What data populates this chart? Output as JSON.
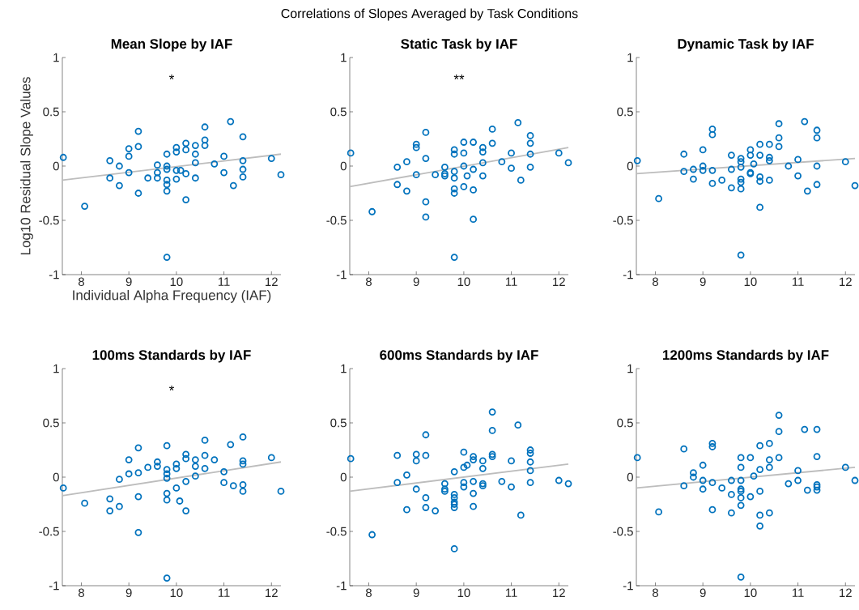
{
  "chart_data": [
    {
      "type": "other",
      "title": "Correlations of Slopes Averaged by Task Conditions"
    },
    {
      "type": "scatter",
      "title": "Mean Slope by IAF",
      "xlabel": "Individual Alpha Frequency (IAF)",
      "ylabel": "Log10 Residual Slope Values",
      "xlim": [
        7.6,
        12.2
      ],
      "ylim": [
        -1,
        1
      ],
      "xticks": [
        8,
        9,
        10,
        11,
        12
      ],
      "yticks": [
        -1,
        -0.5,
        0,
        0.5,
        1
      ],
      "annotations": [
        "*"
      ],
      "series": [
        {
          "type": "scatter",
          "marker": "circle",
          "color": "#0072bd",
          "x": [
            7.62,
            8.07,
            8.6,
            8.6,
            8.8,
            8.8,
            9.0,
            9.0,
            9.0,
            9.2,
            9.2,
            9.2,
            9.4,
            9.6,
            9.6,
            9.6,
            9.8,
            9.8,
            9.8,
            9.8,
            9.8,
            9.8,
            9.8,
            10.0,
            10.0,
            10.0,
            10.0,
            10.09,
            10.2,
            10.2,
            10.2,
            10.2,
            10.4,
            10.4,
            10.4,
            10.4,
            10.6,
            10.6,
            10.6,
            10.8,
            11.0,
            11.0,
            11.14,
            11.2,
            11.4,
            11.4,
            11.4,
            11.4,
            12.0,
            12.2
          ],
          "values": [
            0.08,
            -0.37,
            0.05,
            -0.11,
            0.0,
            -0.18,
            0.16,
            0.09,
            -0.06,
            0.32,
            0.18,
            -0.25,
            -0.11,
            0.01,
            -0.06,
            -0.11,
            0.11,
            0.0,
            -0.03,
            -0.13,
            -0.17,
            -0.23,
            -0.84,
            0.17,
            0.13,
            -0.04,
            -0.12,
            -0.04,
            0.21,
            0.15,
            -0.07,
            -0.31,
            0.19,
            0.11,
            0.03,
            -0.11,
            0.36,
            0.24,
            0.19,
            0.02,
            0.09,
            -0.06,
            0.41,
            -0.18,
            0.27,
            0.05,
            -0.03,
            -0.1,
            0.07,
            -0.08
          ]
        },
        {
          "type": "line",
          "marker": "none",
          "color": "#bdbdbd",
          "x": [
            7.6,
            12.2
          ],
          "values": [
            -0.13,
            0.11
          ]
        }
      ]
    },
    {
      "type": "scatter",
      "title": "Static Task by IAF",
      "xlim": [
        7.6,
        12.2
      ],
      "ylim": [
        -1,
        1
      ],
      "xticks": [
        8,
        9,
        10,
        11,
        12
      ],
      "yticks": [
        -1,
        -0.5,
        0,
        0.5,
        1
      ],
      "annotations": [
        "**"
      ],
      "series": [
        {
          "type": "scatter",
          "marker": "circle",
          "color": "#0072bd",
          "x": [
            7.62,
            8.07,
            8.6,
            8.6,
            8.8,
            8.8,
            9.0,
            9.0,
            9.0,
            9.2,
            9.2,
            9.2,
            9.2,
            9.4,
            9.6,
            9.6,
            9.6,
            9.8,
            9.8,
            9.8,
            9.8,
            9.8,
            9.8,
            9.8,
            10.0,
            10.0,
            10.0,
            10.0,
            10.07,
            10.2,
            10.2,
            10.2,
            10.2,
            10.4,
            10.4,
            10.4,
            10.4,
            10.6,
            10.6,
            10.8,
            11.0,
            11.0,
            11.14,
            11.2,
            11.4,
            11.4,
            11.4,
            11.4,
            12.0,
            12.2
          ],
          "values": [
            0.12,
            -0.42,
            -0.01,
            -0.17,
            0.04,
            -0.23,
            0.2,
            0.17,
            -0.08,
            0.31,
            0.07,
            -0.33,
            -0.47,
            -0.08,
            -0.01,
            -0.07,
            -0.09,
            0.15,
            0.11,
            -0.05,
            -0.11,
            -0.21,
            -0.25,
            -0.84,
            0.22,
            0.12,
            0.0,
            -0.19,
            -0.09,
            0.22,
            -0.03,
            -0.22,
            -0.49,
            0.17,
            0.13,
            0.03,
            -0.09,
            0.34,
            0.21,
            0.04,
            0.12,
            -0.02,
            0.4,
            -0.13,
            0.28,
            0.21,
            0.11,
            -0.01,
            0.12,
            0.03
          ]
        },
        {
          "type": "line",
          "marker": "none",
          "color": "#bdbdbd",
          "x": [
            7.6,
            12.2
          ],
          "values": [
            -0.19,
            0.17
          ]
        }
      ]
    },
    {
      "type": "scatter",
      "title": "Dynamic Task by IAF",
      "xlim": [
        7.6,
        12.2
      ],
      "ylim": [
        -1,
        1
      ],
      "xticks": [
        8,
        9,
        10,
        11,
        12
      ],
      "yticks": [
        -1,
        -0.5,
        0,
        0.5,
        1
      ],
      "series": [
        {
          "type": "scatter",
          "marker": "circle",
          "color": "#0072bd",
          "x": [
            7.62,
            8.07,
            8.6,
            8.6,
            8.8,
            8.8,
            9.0,
            9.0,
            9.0,
            9.2,
            9.2,
            9.2,
            9.2,
            9.4,
            9.6,
            9.6,
            9.6,
            9.8,
            9.8,
            9.8,
            9.8,
            9.8,
            9.8,
            9.8,
            10.0,
            10.0,
            10.0,
            10.0,
            10.07,
            10.2,
            10.2,
            10.2,
            10.2,
            10.2,
            10.4,
            10.4,
            10.4,
            10.4,
            10.6,
            10.6,
            10.6,
            10.8,
            11.0,
            11.0,
            11.14,
            11.2,
            11.4,
            11.4,
            11.4,
            11.4,
            12.0,
            12.2
          ],
          "values": [
            0.05,
            -0.3,
            0.11,
            -0.05,
            -0.03,
            -0.12,
            0.15,
            0.0,
            -0.04,
            0.34,
            0.29,
            -0.04,
            -0.16,
            -0.13,
            0.1,
            -0.03,
            -0.2,
            0.07,
            0.04,
            -0.01,
            -0.12,
            -0.15,
            -0.21,
            -0.82,
            0.15,
            0.1,
            -0.06,
            -0.07,
            0.02,
            0.2,
            0.1,
            -0.1,
            -0.14,
            -0.38,
            0.2,
            0.08,
            0.05,
            -0.13,
            0.39,
            0.26,
            0.18,
            0.0,
            0.06,
            -0.09,
            0.41,
            -0.23,
            0.33,
            0.26,
            0.0,
            -0.17,
            0.04,
            -0.18
          ]
        },
        {
          "type": "line",
          "marker": "none",
          "color": "#bdbdbd",
          "x": [
            7.6,
            12.2
          ],
          "values": [
            -0.07,
            0.07
          ]
        }
      ]
    },
    {
      "type": "scatter",
      "title": "100ms Standards by IAF",
      "xlim": [
        7.6,
        12.2
      ],
      "ylim": [
        -1,
        1
      ],
      "xticks": [
        8,
        9,
        10,
        11,
        12
      ],
      "yticks": [
        -1,
        -0.5,
        0,
        0.5,
        1
      ],
      "annotations": [
        "*"
      ],
      "series": [
        {
          "type": "scatter",
          "marker": "circle",
          "color": "#0072bd",
          "x": [
            7.62,
            8.07,
            8.6,
            8.6,
            8.8,
            8.8,
            9.0,
            9.0,
            9.2,
            9.2,
            9.2,
            9.2,
            9.4,
            9.6,
            9.6,
            9.8,
            9.8,
            9.8,
            9.8,
            9.8,
            9.8,
            9.8,
            10.0,
            10.0,
            10.0,
            10.07,
            10.2,
            10.2,
            10.2,
            10.2,
            10.4,
            10.4,
            10.4,
            10.6,
            10.6,
            10.6,
            10.8,
            11.0,
            11.0,
            11.14,
            11.2,
            11.4,
            11.4,
            11.4,
            11.4,
            11.4,
            12.0,
            12.2
          ],
          "values": [
            -0.1,
            -0.24,
            -0.2,
            -0.31,
            -0.02,
            -0.27,
            0.16,
            0.03,
            0.27,
            0.04,
            -0.18,
            -0.51,
            0.09,
            0.14,
            0.1,
            0.29,
            0.07,
            0.03,
            -0.01,
            -0.15,
            -0.21,
            -0.93,
            0.12,
            0.08,
            -0.1,
            -0.22,
            0.21,
            0.17,
            -0.04,
            -0.31,
            0.16,
            0.1,
            0.01,
            0.34,
            0.2,
            0.08,
            0.16,
            0.05,
            -0.05,
            0.3,
            -0.08,
            0.37,
            0.15,
            0.12,
            -0.07,
            -0.13,
            0.18,
            -0.13
          ]
        },
        {
          "type": "line",
          "marker": "none",
          "color": "#bdbdbd",
          "x": [
            7.6,
            12.2
          ],
          "values": [
            -0.17,
            0.14
          ]
        }
      ]
    },
    {
      "type": "scatter",
      "title": "600ms Standards by IAF",
      "xlim": [
        7.6,
        12.2
      ],
      "ylim": [
        -1,
        1
      ],
      "xticks": [
        8,
        9,
        10,
        11,
        12
      ],
      "yticks": [
        -1,
        -0.5,
        0,
        0.5,
        1
      ],
      "series": [
        {
          "type": "scatter",
          "marker": "circle",
          "color": "#0072bd",
          "x": [
            7.62,
            8.07,
            8.6,
            8.6,
            8.8,
            8.8,
            9.0,
            9.0,
            9.0,
            9.2,
            9.2,
            9.2,
            9.2,
            9.4,
            9.6,
            9.6,
            9.6,
            9.8,
            9.8,
            9.8,
            9.8,
            9.8,
            9.8,
            9.8,
            10.0,
            10.0,
            10.0,
            10.0,
            10.07,
            10.2,
            10.2,
            10.2,
            10.2,
            10.2,
            10.4,
            10.4,
            10.4,
            10.4,
            10.6,
            10.6,
            10.6,
            10.6,
            10.8,
            11.0,
            11.0,
            11.14,
            11.2,
            11.4,
            11.4,
            11.4,
            11.4,
            11.4,
            12.0,
            12.2
          ],
          "values": [
            0.17,
            -0.53,
            0.2,
            -0.05,
            0.02,
            -0.3,
            0.21,
            0.15,
            -0.11,
            0.39,
            0.2,
            -0.19,
            -0.28,
            -0.31,
            -0.06,
            -0.11,
            -0.13,
            0.05,
            -0.16,
            -0.19,
            -0.23,
            -0.25,
            -0.28,
            -0.66,
            0.23,
            0.09,
            -0.05,
            -0.09,
            0.11,
            0.19,
            0.16,
            -0.04,
            -0.15,
            -0.27,
            0.15,
            0.08,
            -0.06,
            -0.08,
            0.6,
            0.43,
            0.21,
            0.19,
            -0.04,
            0.15,
            -0.09,
            0.48,
            -0.35,
            0.25,
            0.22,
            0.14,
            0.06,
            -0.05,
            -0.03,
            -0.06
          ]
        },
        {
          "type": "line",
          "marker": "none",
          "color": "#bdbdbd",
          "x": [
            7.6,
            12.2
          ],
          "values": [
            -0.13,
            0.12
          ]
        }
      ]
    },
    {
      "type": "scatter",
      "title": "1200ms Standards by IAF",
      "xlim": [
        7.6,
        12.2
      ],
      "ylim": [
        -1,
        1
      ],
      "xticks": [
        8,
        9,
        10,
        11,
        12
      ],
      "yticks": [
        -1,
        -0.5,
        0,
        0.5,
        1
      ],
      "series": [
        {
          "type": "scatter",
          "marker": "circle",
          "color": "#0072bd",
          "x": [
            7.62,
            8.07,
            8.6,
            8.6,
            8.8,
            8.8,
            9.0,
            9.0,
            9.0,
            9.2,
            9.2,
            9.2,
            9.2,
            9.4,
            9.6,
            9.6,
            9.6,
            9.8,
            9.8,
            9.8,
            9.8,
            9.8,
            9.8,
            9.8,
            9.8,
            10.0,
            10.0,
            10.07,
            10.2,
            10.2,
            10.2,
            10.2,
            10.2,
            10.4,
            10.4,
            10.4,
            10.4,
            10.6,
            10.6,
            10.6,
            10.8,
            11.0,
            11.0,
            11.14,
            11.2,
            11.4,
            11.4,
            11.4,
            11.4,
            11.4,
            12.0,
            12.2
          ],
          "values": [
            0.18,
            -0.32,
            0.26,
            -0.08,
            0.04,
            0.0,
            0.11,
            -0.03,
            -0.11,
            0.31,
            0.28,
            -0.05,
            -0.3,
            -0.1,
            -0.03,
            -0.16,
            -0.33,
            0.18,
            0.09,
            -0.03,
            -0.11,
            -0.13,
            -0.19,
            -0.26,
            -0.92,
            0.18,
            -0.18,
            0.01,
            0.29,
            0.07,
            -0.13,
            -0.35,
            -0.45,
            0.31,
            0.16,
            0.09,
            -0.33,
            0.57,
            0.42,
            0.18,
            -0.06,
            0.06,
            -0.03,
            0.44,
            -0.12,
            0.44,
            0.19,
            -0.07,
            -0.09,
            -0.12,
            0.09,
            -0.03
          ]
        },
        {
          "type": "line",
          "marker": "none",
          "color": "#bdbdbd",
          "x": [
            7.6,
            12.2
          ],
          "values": [
            -0.1,
            0.09
          ]
        }
      ]
    }
  ]
}
